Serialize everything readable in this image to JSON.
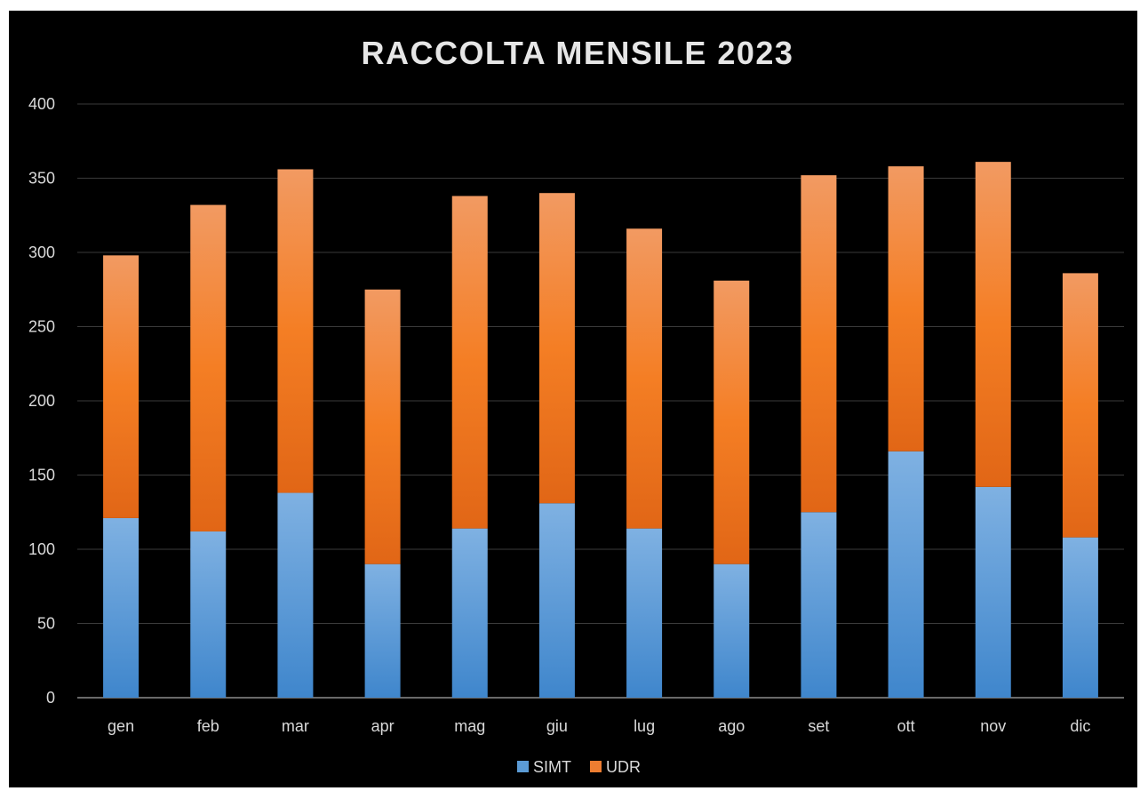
{
  "chart_data": {
    "type": "bar",
    "stacked": true,
    "title": "RACCOLTA MENSILE 2023",
    "xlabel": "",
    "ylabel": "",
    "categories": [
      "gen",
      "feb",
      "mar",
      "apr",
      "mag",
      "giu",
      "lug",
      "ago",
      "set",
      "ott",
      "nov",
      "dic"
    ],
    "series": [
      {
        "name": "SIMT",
        "values": [
          121,
          112,
          138,
          90,
          114,
          131,
          114,
          90,
          125,
          166,
          142,
          108
        ],
        "color": "#5b9bd5"
      },
      {
        "name": "UDR",
        "values": [
          177,
          220,
          218,
          185,
          224,
          209,
          202,
          191,
          227,
          192,
          219,
          178
        ],
        "color": "#ed7d31"
      }
    ],
    "ylim": [
      0,
      400
    ],
    "yticks": [
      0,
      50,
      100,
      150,
      200,
      250,
      300,
      350,
      400
    ],
    "grid": true,
    "legend_position": "bottom",
    "background": "#000000"
  }
}
